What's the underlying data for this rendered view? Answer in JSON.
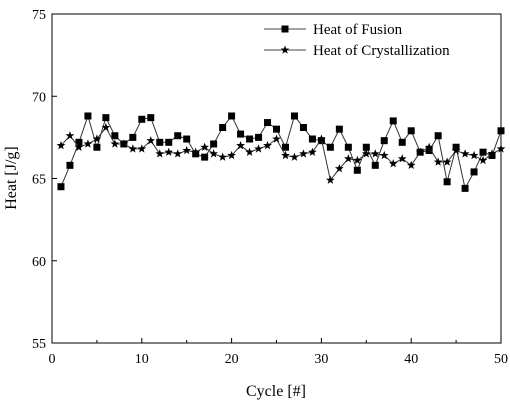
{
  "chart_data": {
    "type": "line",
    "title": "",
    "xlabel": "Cycle [#]",
    "ylabel": "Heat [J/g]",
    "xlim": [
      0,
      50
    ],
    "ylim": [
      55,
      75
    ],
    "xticks": [
      0,
      10,
      20,
      30,
      40,
      50
    ],
    "yticks": [
      55,
      60,
      65,
      70,
      75
    ],
    "grid": false,
    "legend_position": "top-right",
    "x": [
      1,
      2,
      3,
      4,
      5,
      6,
      7,
      8,
      9,
      10,
      11,
      12,
      13,
      14,
      15,
      16,
      17,
      18,
      19,
      20,
      21,
      22,
      23,
      24,
      25,
      26,
      27,
      28,
      29,
      30,
      31,
      32,
      33,
      34,
      35,
      36,
      37,
      38,
      39,
      40,
      41,
      42,
      43,
      44,
      45,
      46,
      47,
      48,
      49,
      50
    ],
    "series": [
      {
        "name": "Heat of Fusion",
        "marker": "square",
        "values": [
          64.5,
          65.8,
          67.2,
          68.8,
          66.9,
          68.7,
          67.6,
          67.1,
          67.5,
          68.6,
          68.7,
          67.2,
          67.2,
          67.6,
          67.4,
          66.5,
          66.3,
          67.1,
          68.1,
          68.8,
          67.7,
          67.4,
          67.5,
          68.4,
          68.0,
          66.9,
          68.8,
          68.1,
          67.4,
          67.3,
          66.9,
          68.0,
          66.9,
          65.5,
          66.9,
          65.8,
          67.3,
          68.5,
          67.2,
          67.9,
          66.6,
          66.7,
          67.6,
          64.8,
          66.9,
          64.4,
          65.4,
          66.6,
          66.4,
          67.9
        ]
      },
      {
        "name": "Heat of Crystallization",
        "marker": "star",
        "values": [
          67.0,
          67.6,
          66.9,
          67.1,
          67.4,
          68.1,
          67.1,
          67.1,
          66.8,
          66.8,
          67.3,
          66.5,
          66.6,
          66.5,
          66.7,
          66.6,
          66.9,
          66.5,
          66.3,
          66.4,
          67.0,
          66.6,
          66.8,
          67.0,
          67.4,
          66.4,
          66.3,
          66.5,
          66.6,
          67.4,
          64.9,
          65.6,
          66.2,
          66.1,
          66.5,
          66.5,
          66.4,
          65.9,
          66.2,
          65.8,
          66.6,
          66.9,
          66.0,
          66.0,
          66.7,
          66.5,
          66.4,
          66.1,
          66.5,
          66.8
        ]
      }
    ]
  }
}
